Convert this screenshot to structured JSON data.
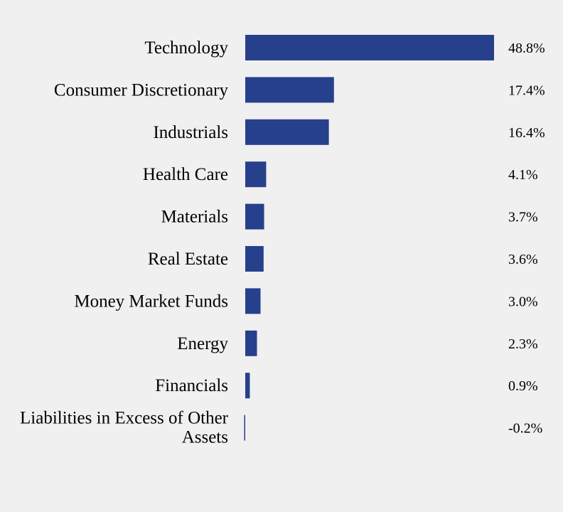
{
  "chart_data": {
    "type": "bar",
    "orientation": "horizontal",
    "categories": [
      "Technology",
      "Consumer Discretionary",
      "Industrials",
      "Health Care",
      "Materials",
      "Real Estate",
      "Money Market Funds",
      "Energy",
      "Financials",
      "Liabilities in Excess of Other Assets"
    ],
    "values": [
      48.8,
      17.4,
      16.4,
      4.1,
      3.7,
      3.6,
      3.0,
      2.3,
      0.9,
      -0.2
    ],
    "value_labels": [
      "48.8%",
      "17.4%",
      "16.4%",
      "4.1%",
      "3.7%",
      "3.6%",
      "3.0%",
      "2.3%",
      "0.9%",
      "-0.2%"
    ],
    "title": "",
    "xlabel": "",
    "ylabel": "",
    "xlim": [
      0,
      48.8
    ],
    "grid": false,
    "legend": "none",
    "bar_color": "#27408b",
    "background_color": "#f0f0f1"
  }
}
